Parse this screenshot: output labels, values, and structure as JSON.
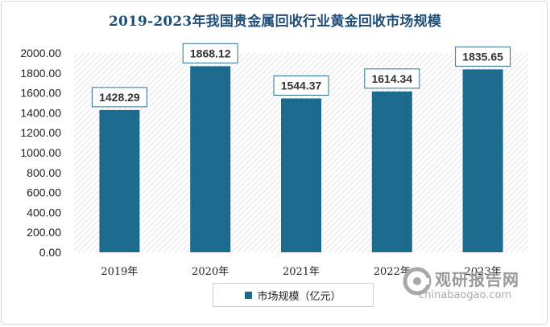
{
  "chart_data": {
    "type": "bar",
    "title": "2019-2023年我国贵金属回收行业黄金回收市场规模",
    "categories": [
      "2019年",
      "2020年",
      "2021年",
      "2022年",
      "2023年"
    ],
    "series": [
      {
        "name": "市场规模（亿元）",
        "values": [
          1428.29,
          1868.12,
          1544.37,
          1614.34,
          1835.65
        ]
      }
    ],
    "data_labels": [
      "1428.29",
      "1868.12",
      "1544.37",
      "1614.34",
      "1835.65"
    ],
    "yticks": [
      "0.00",
      "200.00",
      "400.00",
      "600.00",
      "800.00",
      "1000.00",
      "1200.00",
      "1400.00",
      "1600.00",
      "1800.00",
      "2000.00"
    ],
    "ylim": [
      0,
      2000
    ],
    "xlabel": "",
    "ylabel": "",
    "legend_position": "bottom",
    "bar_color": "#1d6a8f",
    "plot_background": "diagonal hatch"
  },
  "watermark": {
    "text": "观研报告网",
    "url": "chinabaogao.com"
  }
}
